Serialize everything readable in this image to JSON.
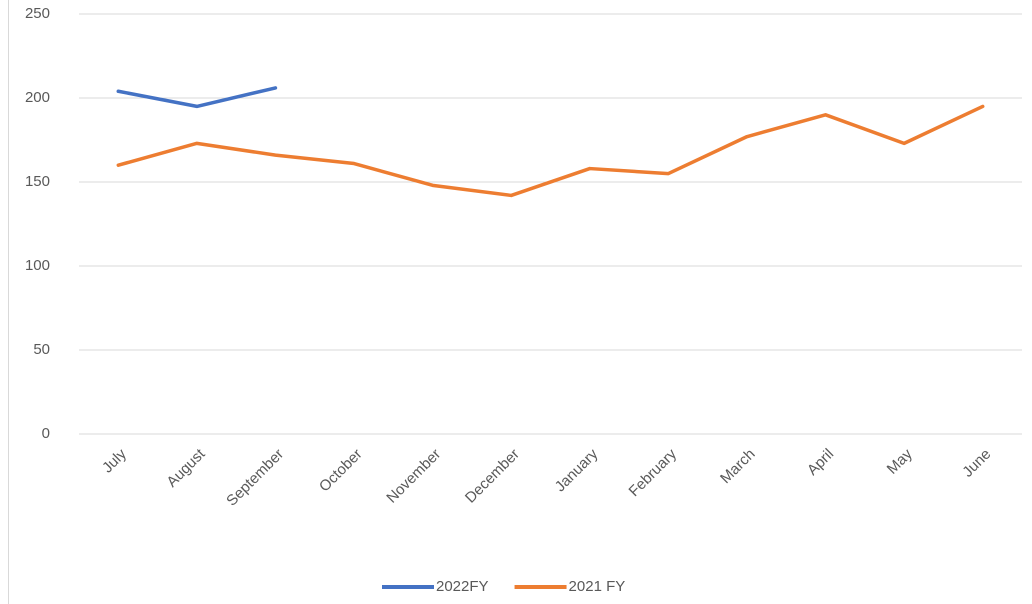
{
  "chart_data": {
    "type": "line",
    "categories": [
      "July",
      "August",
      "September",
      "October",
      "November",
      "December",
      "January",
      "February",
      "March",
      "April",
      "May",
      "June"
    ],
    "series": [
      {
        "name": "2022FY",
        "color": "#4472c4",
        "values": [
          204,
          195,
          206,
          null,
          null,
          null,
          null,
          null,
          null,
          null,
          null,
          null
        ]
      },
      {
        "name": "2021 FY",
        "color": "#ed7d31",
        "values": [
          160,
          173,
          166,
          161,
          148,
          142,
          158,
          155,
          177,
          190,
          173,
          195
        ]
      }
    ],
    "ylim": [
      0,
      250
    ],
    "yticks": [
      0,
      50,
      100,
      150,
      200,
      250
    ],
    "grid": true,
    "legend": "bottom"
  }
}
